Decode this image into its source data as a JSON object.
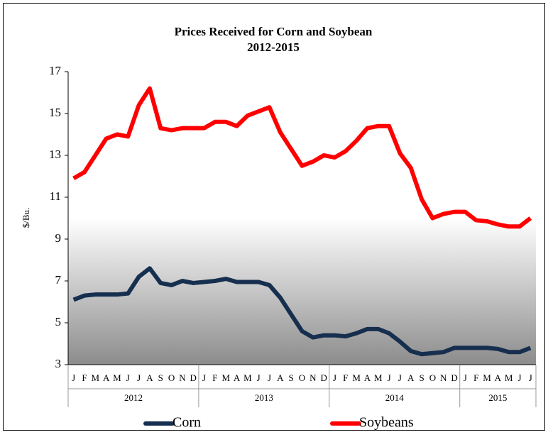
{
  "chart_data": {
    "type": "line",
    "title": "Prices Received for Corn and Soybean",
    "subtitle": "2012-2015",
    "y_label": "$/Bu.",
    "categories": [
      "J",
      "F",
      "M",
      "A",
      "M",
      "J",
      "J",
      "A",
      "S",
      "O",
      "N",
      "D",
      "J",
      "F",
      "M",
      "A",
      "M",
      "J",
      "J",
      "A",
      "S",
      "O",
      "N",
      "D",
      "J",
      "F",
      "M",
      "A",
      "M",
      "J",
      "J",
      "A",
      "S",
      "O",
      "N",
      "D",
      "J",
      "F",
      "M",
      "A",
      "M",
      "J",
      "J"
    ],
    "x_groups": [
      {
        "label": "2012",
        "span": 12
      },
      {
        "label": "2013",
        "span": 12
      },
      {
        "label": "2014",
        "span": 12
      },
      {
        "label": "2015",
        "span": 7
      }
    ],
    "series": [
      {
        "name": "Corn",
        "color": "#172f4f",
        "values": [
          6.1,
          6.3,
          6.35,
          6.35,
          6.35,
          6.4,
          7.2,
          7.6,
          6.9,
          6.8,
          7.0,
          6.9,
          6.95,
          7.0,
          7.1,
          6.95,
          6.95,
          6.95,
          6.8,
          6.2,
          5.4,
          4.6,
          4.3,
          4.4,
          4.4,
          4.35,
          4.5,
          4.7,
          4.7,
          4.5,
          4.1,
          3.65,
          3.5,
          3.55,
          3.6,
          3.8,
          3.8,
          3.8,
          3.8,
          3.75,
          3.6,
          3.6,
          3.8
        ]
      },
      {
        "name": "Soybeans",
        "color": "#ff0000",
        "values": [
          11.9,
          12.2,
          13.0,
          13.8,
          14.0,
          13.9,
          15.4,
          16.2,
          14.3,
          14.2,
          14.3,
          14.3,
          14.3,
          14.6,
          14.6,
          14.4,
          14.9,
          15.1,
          15.3,
          14.1,
          13.3,
          12.5,
          12.7,
          13.0,
          12.9,
          13.2,
          13.7,
          14.3,
          14.4,
          14.4,
          13.1,
          12.4,
          10.9,
          10.0,
          10.2,
          10.3,
          10.3,
          9.9,
          9.85,
          9.7,
          9.6,
          9.6,
          10.0
        ]
      }
    ],
    "ylim": [
      3,
      17
    ],
    "yticks": [
      3,
      5,
      7,
      9,
      11,
      13,
      15,
      17
    ],
    "legend": "bottom"
  }
}
